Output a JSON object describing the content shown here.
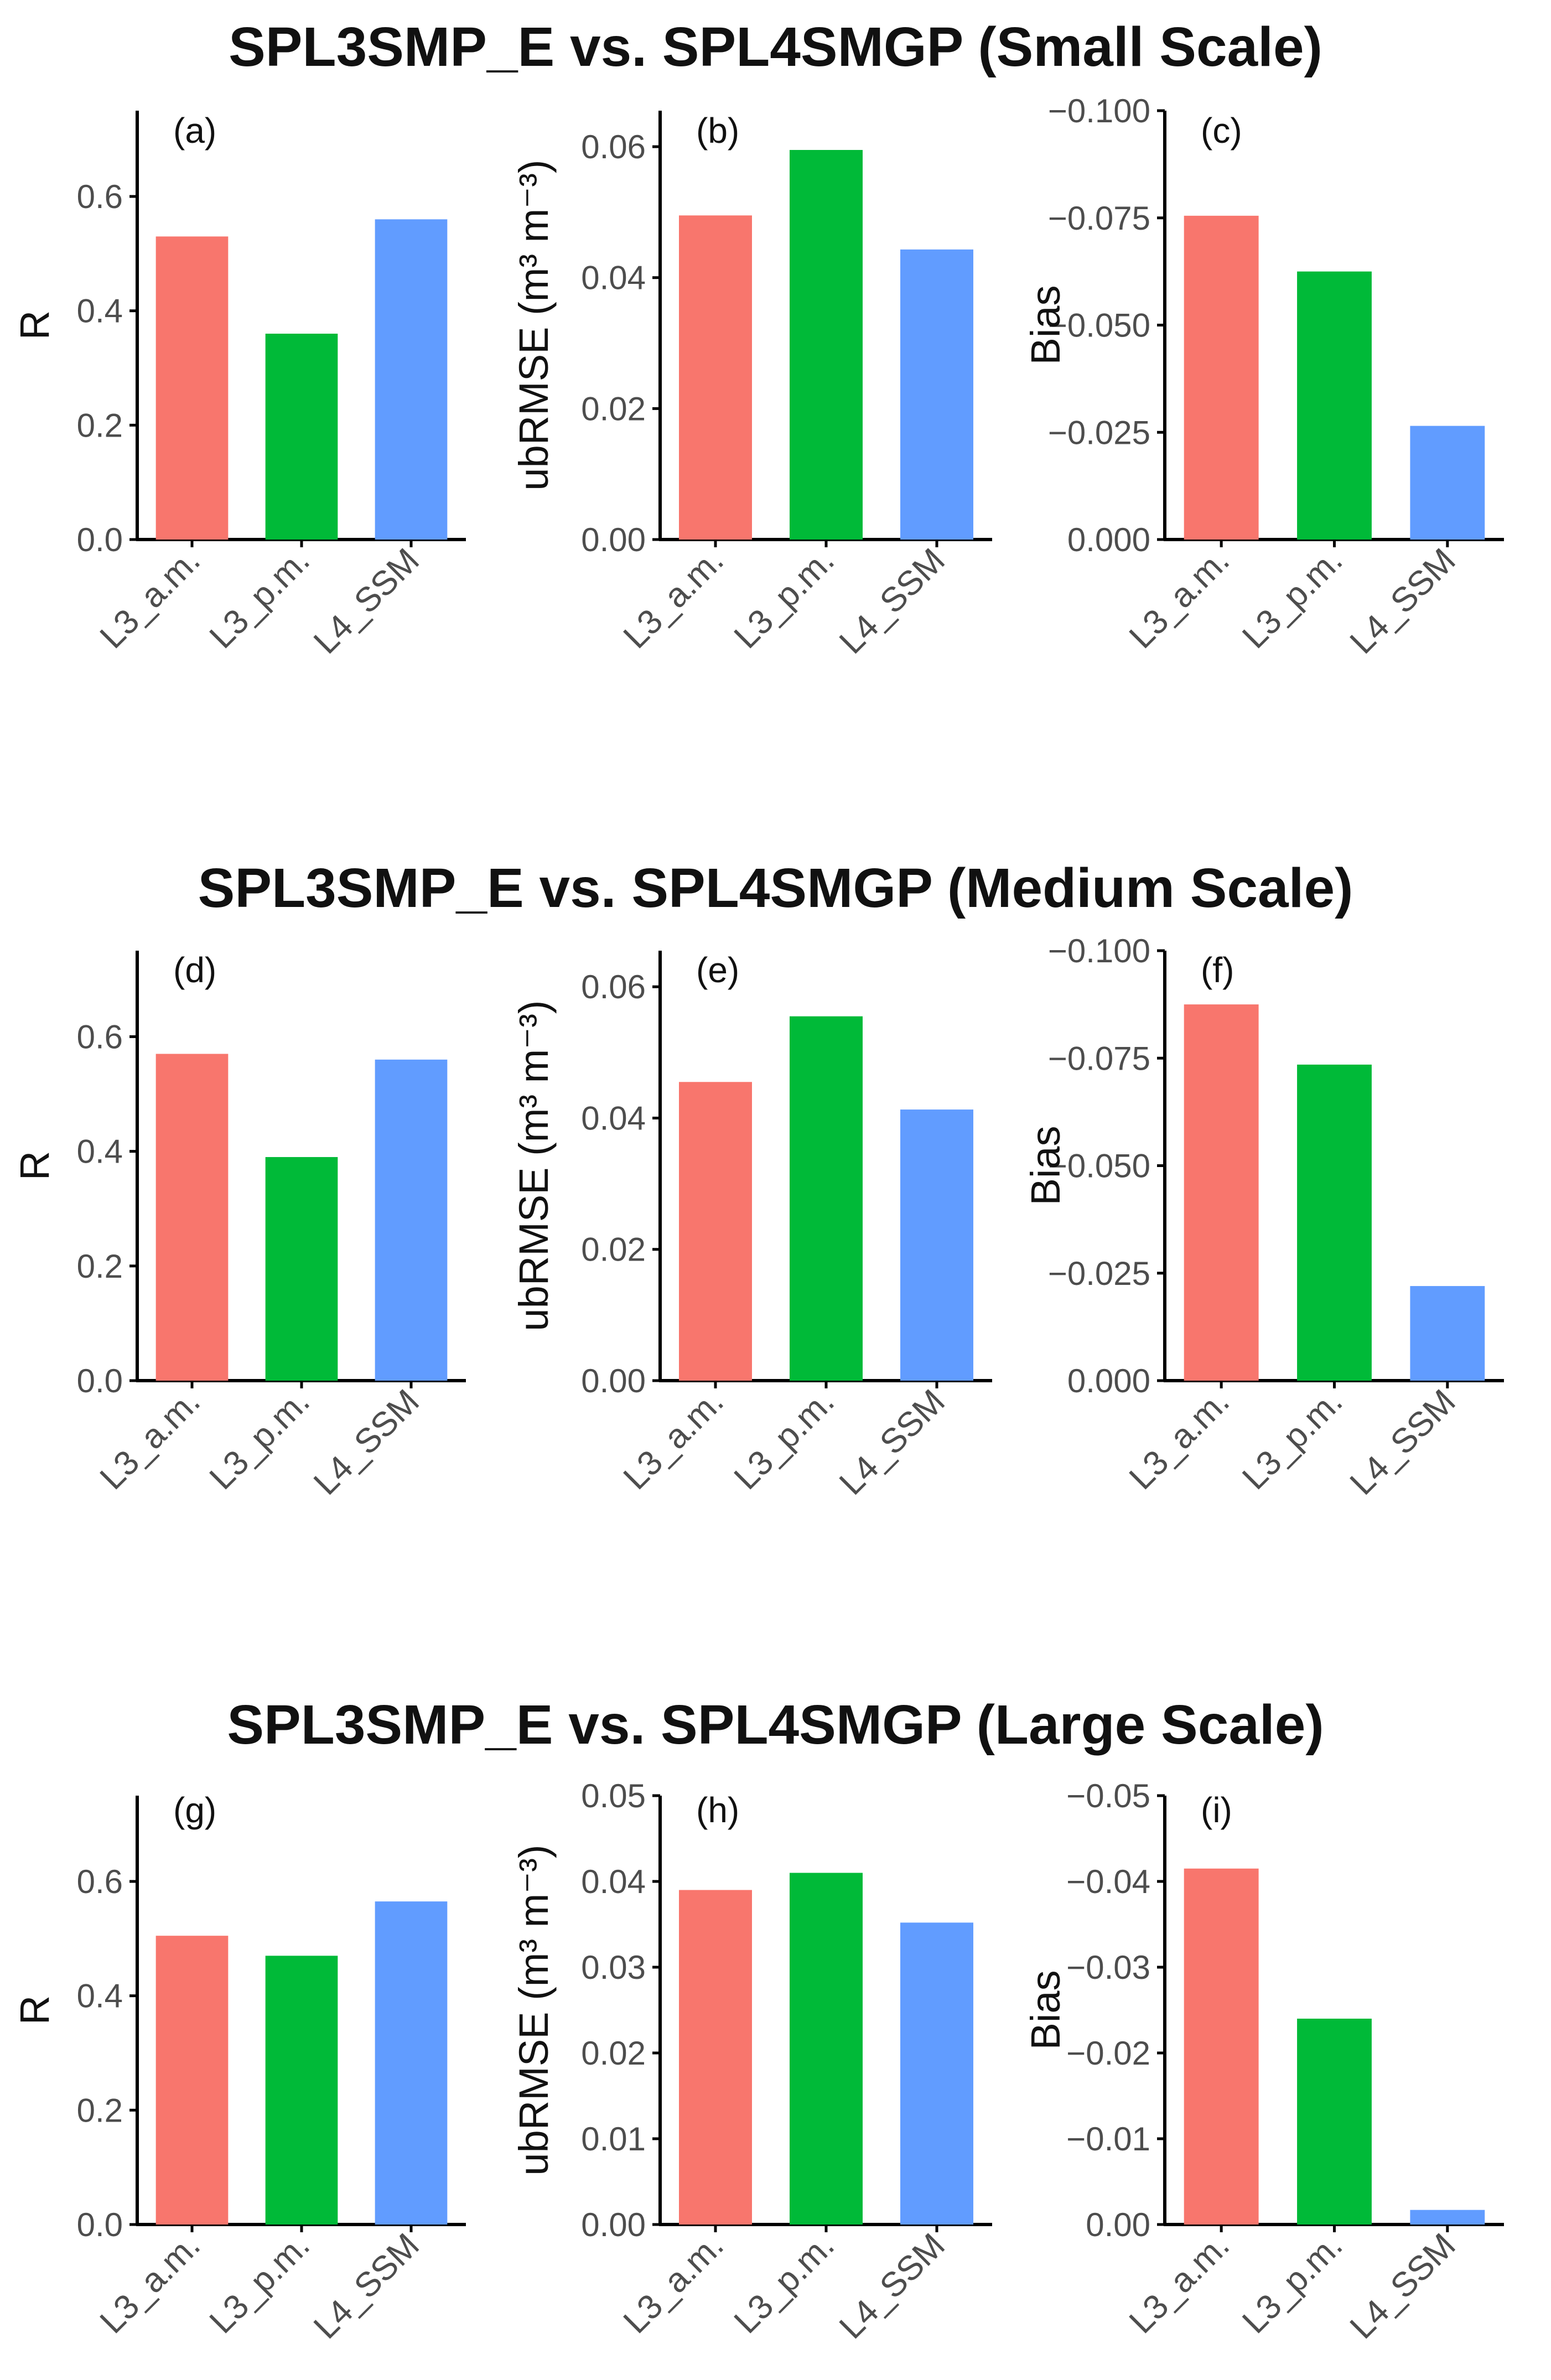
{
  "sections": [
    {
      "title": "SPL3SMP_E vs. SPL4SMGP (Small Scale)"
    },
    {
      "title": "SPL3SMP_E vs. SPL4SMGP (Medium Scale)"
    },
    {
      "title": "SPL3SMP_E vs. SPL4SMGP (Large Scale)"
    }
  ],
  "colors": {
    "L3_a.m.": "#F8766D",
    "L3_p.m.": "#00BA38",
    "L4_SSM": "#619CFF",
    "axis": "#000000",
    "tick_label": "#4d4d4d"
  },
  "chart_data": [
    {
      "panel": "(a)",
      "type": "bar",
      "section": "SPL3SMP_E vs. SPL4SMGP (Small Scale)",
      "categories": [
        "L3_a.m.",
        "L3_p.m.",
        "L4_SSM"
      ],
      "values": [
        0.53,
        0.36,
        0.56
      ],
      "ylabel": "R",
      "ylim": [
        0,
        0.75
      ],
      "yticks": [
        0,
        0.2,
        0.4,
        0.6
      ],
      "ytick_labels": [
        "0.0",
        "0.2",
        "0.4",
        "0.6"
      ],
      "reversed_y": false,
      "grid": false
    },
    {
      "panel": "(b)",
      "type": "bar",
      "section": "SPL3SMP_E vs. SPL4SMGP (Small Scale)",
      "categories": [
        "L3_a.m.",
        "L3_p.m.",
        "L4_SSM"
      ],
      "values": [
        0.0495,
        0.0595,
        0.0443
      ],
      "ylabel": "ubRMSE (m³ m⁻³)",
      "ylim": [
        0,
        0.0655
      ],
      "yticks": [
        0,
        0.02,
        0.04,
        0.06
      ],
      "ytick_labels": [
        "0.00",
        "0.02",
        "0.04",
        "0.06"
      ],
      "reversed_y": false,
      "grid": false
    },
    {
      "panel": "(c)",
      "type": "bar",
      "section": "SPL3SMP_E vs. SPL4SMGP (Small Scale)",
      "categories": [
        "L3_a.m.",
        "L3_p.m.",
        "L4_SSM"
      ],
      "values": [
        -0.0755,
        -0.0625,
        -0.0265
      ],
      "ylabel": "Bias",
      "ylim": [
        0,
        -0.1
      ],
      "yticks": [
        0,
        -0.025,
        -0.05,
        -0.075,
        -0.1
      ],
      "ytick_labels": [
        "0.000",
        "−0.025",
        "−0.050",
        "−0.075",
        "−0.100"
      ],
      "reversed_y": true,
      "grid": false
    },
    {
      "panel": "(d)",
      "type": "bar",
      "section": "SPL3SMP_E vs. SPL4SMGP (Medium Scale)",
      "categories": [
        "L3_a.m.",
        "L3_p.m.",
        "L4_SSM"
      ],
      "values": [
        0.57,
        0.39,
        0.56
      ],
      "ylabel": "R",
      "ylim": [
        0,
        0.75
      ],
      "yticks": [
        0,
        0.2,
        0.4,
        0.6
      ],
      "ytick_labels": [
        "0.0",
        "0.2",
        "0.4",
        "0.6"
      ],
      "reversed_y": false,
      "grid": false
    },
    {
      "panel": "(e)",
      "type": "bar",
      "section": "SPL3SMP_E vs. SPL4SMGP (Medium Scale)",
      "categories": [
        "L3_a.m.",
        "L3_p.m.",
        "L4_SSM"
      ],
      "values": [
        0.0455,
        0.0555,
        0.0413
      ],
      "ylabel": "ubRMSE (m³ m⁻³)",
      "ylim": [
        0,
        0.0655
      ],
      "yticks": [
        0,
        0.02,
        0.04,
        0.06
      ],
      "ytick_labels": [
        "0.00",
        "0.02",
        "0.04",
        "0.06"
      ],
      "reversed_y": false,
      "grid": false
    },
    {
      "panel": "(f)",
      "type": "bar",
      "section": "SPL3SMP_E vs. SPL4SMGP (Medium Scale)",
      "categories": [
        "L3_a.m.",
        "L3_p.m.",
        "L4_SSM"
      ],
      "values": [
        -0.0875,
        -0.0735,
        -0.022
      ],
      "ylabel": "Bias",
      "ylim": [
        0,
        -0.1
      ],
      "yticks": [
        0,
        -0.025,
        -0.05,
        -0.075,
        -0.1
      ],
      "ytick_labels": [
        "0.000",
        "−0.025",
        "−0.050",
        "−0.075",
        "−0.100"
      ],
      "reversed_y": true,
      "grid": false
    },
    {
      "panel": "(g)",
      "type": "bar",
      "section": "SPL3SMP_E vs. SPL4SMGP (Large Scale)",
      "categories": [
        "L3_a.m.",
        "L3_p.m.",
        "L4_SSM"
      ],
      "values": [
        0.505,
        0.47,
        0.565
      ],
      "ylabel": "R",
      "ylim": [
        0,
        0.75
      ],
      "yticks": [
        0,
        0.2,
        0.4,
        0.6
      ],
      "ytick_labels": [
        "0.0",
        "0.2",
        "0.4",
        "0.6"
      ],
      "reversed_y": false,
      "grid": false
    },
    {
      "panel": "(h)",
      "type": "bar",
      "section": "SPL3SMP_E vs. SPL4SMGP (Large Scale)",
      "categories": [
        "L3_a.m.",
        "L3_p.m.",
        "L4_SSM"
      ],
      "values": [
        0.039,
        0.041,
        0.0352
      ],
      "ylabel": "ubRMSE (m³ m⁻³)",
      "ylim": [
        0,
        0.05
      ],
      "yticks": [
        0,
        0.01,
        0.02,
        0.03,
        0.04,
        0.05
      ],
      "ytick_labels": [
        "0.00",
        "0.01",
        "0.02",
        "0.03",
        "0.04",
        "0.05"
      ],
      "reversed_y": false,
      "grid": false
    },
    {
      "panel": "(i)",
      "type": "bar",
      "section": "SPL3SMP_E vs. SPL4SMGP (Large Scale)",
      "categories": [
        "L3_a.m.",
        "L3_p.m.",
        "L4_SSM"
      ],
      "values": [
        -0.0415,
        -0.024,
        -0.0017
      ],
      "ylabel": "Bias",
      "ylim": [
        0,
        -0.05
      ],
      "yticks": [
        0,
        -0.01,
        -0.02,
        -0.03,
        -0.04,
        -0.05
      ],
      "ytick_labels": [
        "0.00",
        "−0.01",
        "−0.02",
        "−0.03",
        "−0.04",
        "−0.05"
      ],
      "reversed_y": true,
      "grid": false
    }
  ]
}
